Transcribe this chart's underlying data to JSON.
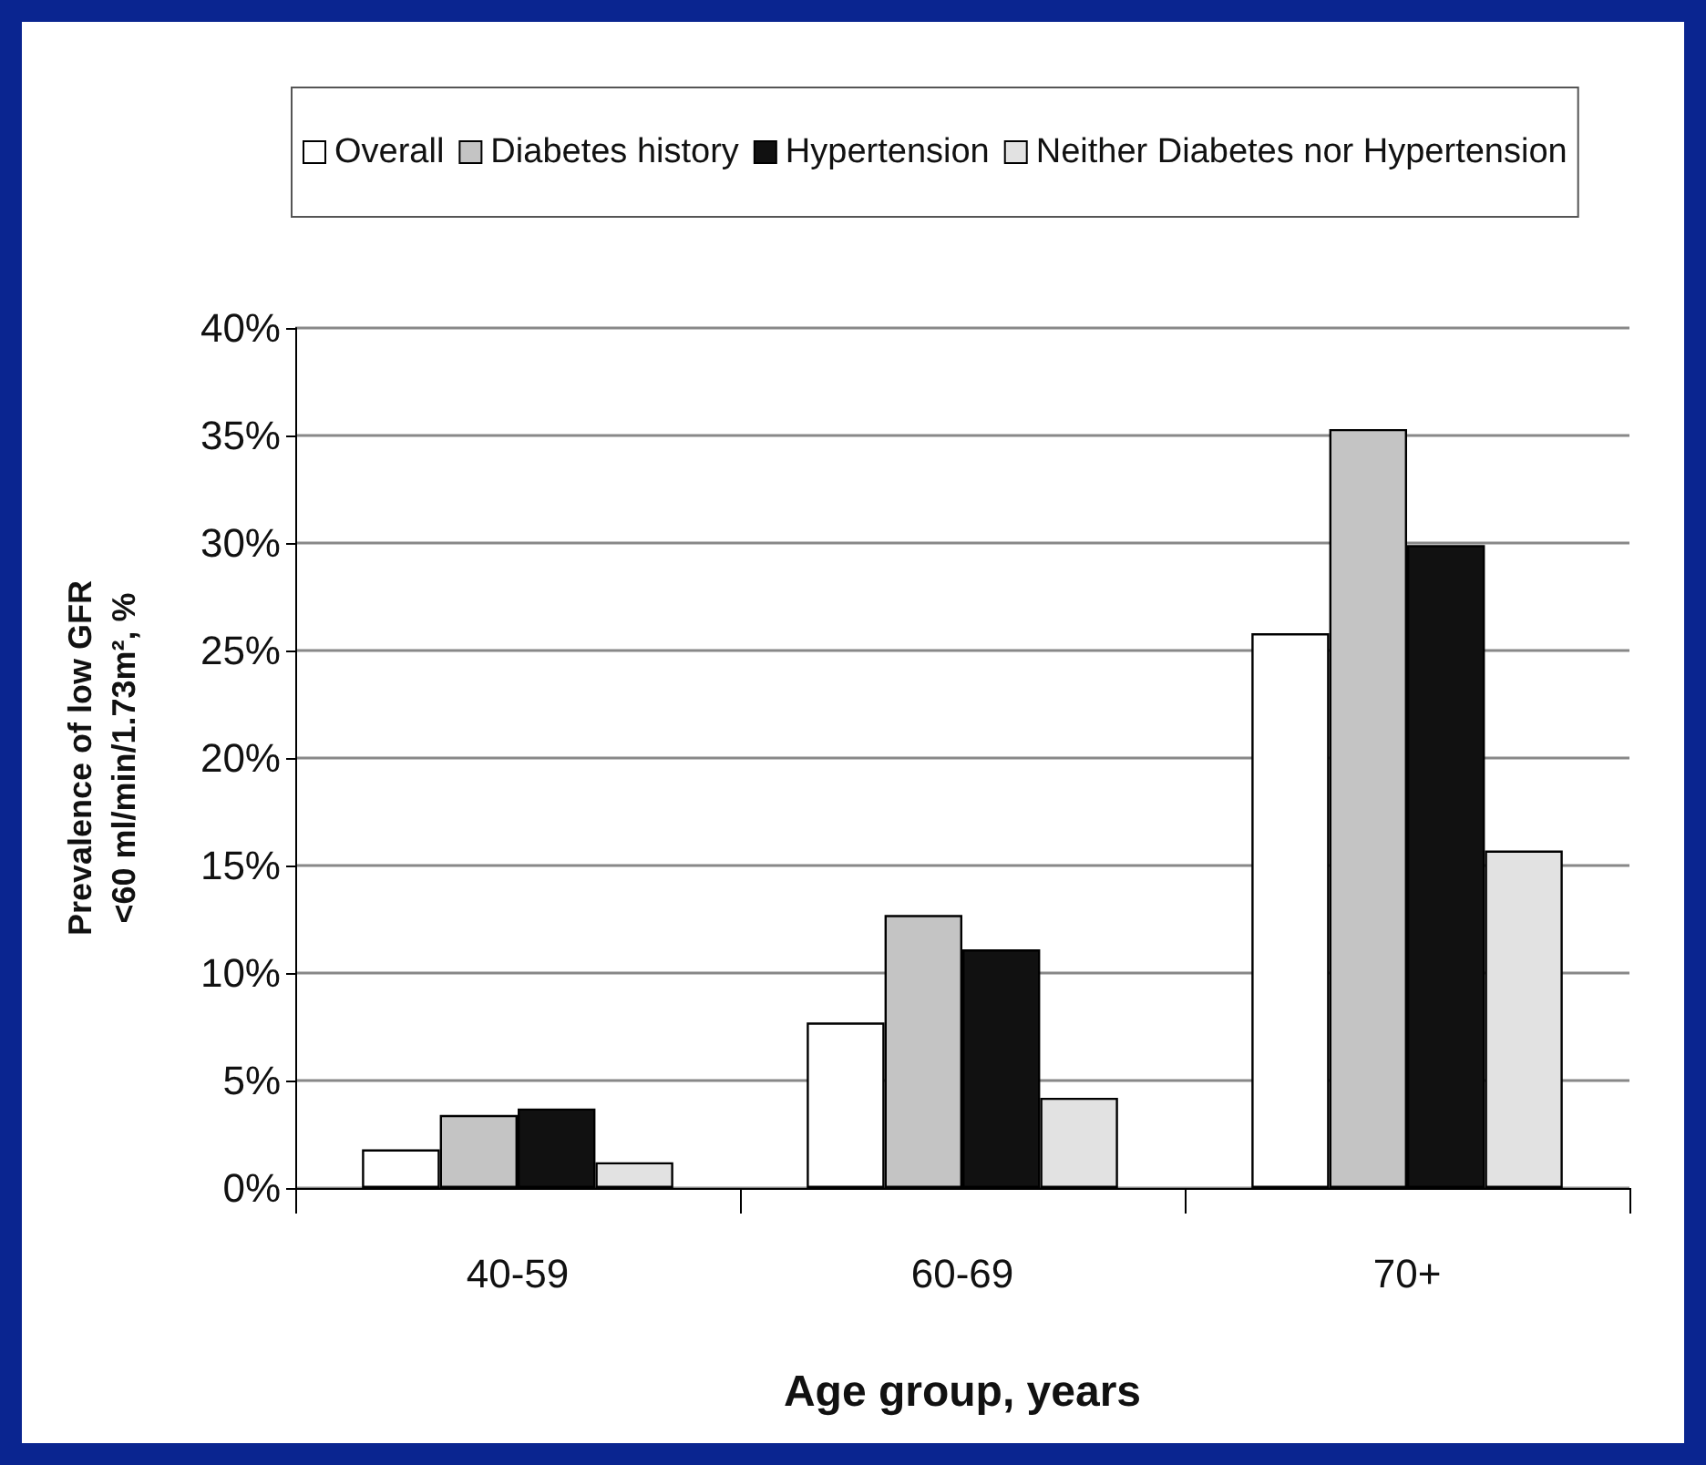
{
  "chart_data": {
    "type": "bar",
    "xlabel": "Age group, years",
    "ylabel": "Prevalence of low GFR\n<60 ml/min/1.73m², %",
    "categories": [
      "40-59",
      "60-69",
      "70+"
    ],
    "series": [
      {
        "name": "Overall",
        "color": "#ffffff",
        "values": [
          1.8,
          7.7,
          25.8
        ]
      },
      {
        "name": "Diabetes history",
        "color": "#c4c4c4",
        "values": [
          3.4,
          12.7,
          35.3
        ]
      },
      {
        "name": "Hypertension",
        "color": "#111111",
        "values": [
          3.7,
          11.1,
          29.9
        ]
      },
      {
        "name": "Neither Diabetes nor Hypertension",
        "color": "#e2e2e2",
        "values": [
          1.2,
          4.2,
          15.7
        ]
      }
    ],
    "ylim": [
      0,
      40
    ],
    "yticks": [
      {
        "value": 0,
        "label": "0%"
      },
      {
        "value": 5,
        "label": "5%"
      },
      {
        "value": 10,
        "label": "10%"
      },
      {
        "value": 15,
        "label": "15%"
      },
      {
        "value": 20,
        "label": "20%"
      },
      {
        "value": 25,
        "label": "25%"
      },
      {
        "value": 30,
        "label": "30%"
      },
      {
        "value": 35,
        "label": "35%"
      },
      {
        "value": 40,
        "label": "40%"
      }
    ],
    "grid": "y",
    "legend": "top"
  }
}
